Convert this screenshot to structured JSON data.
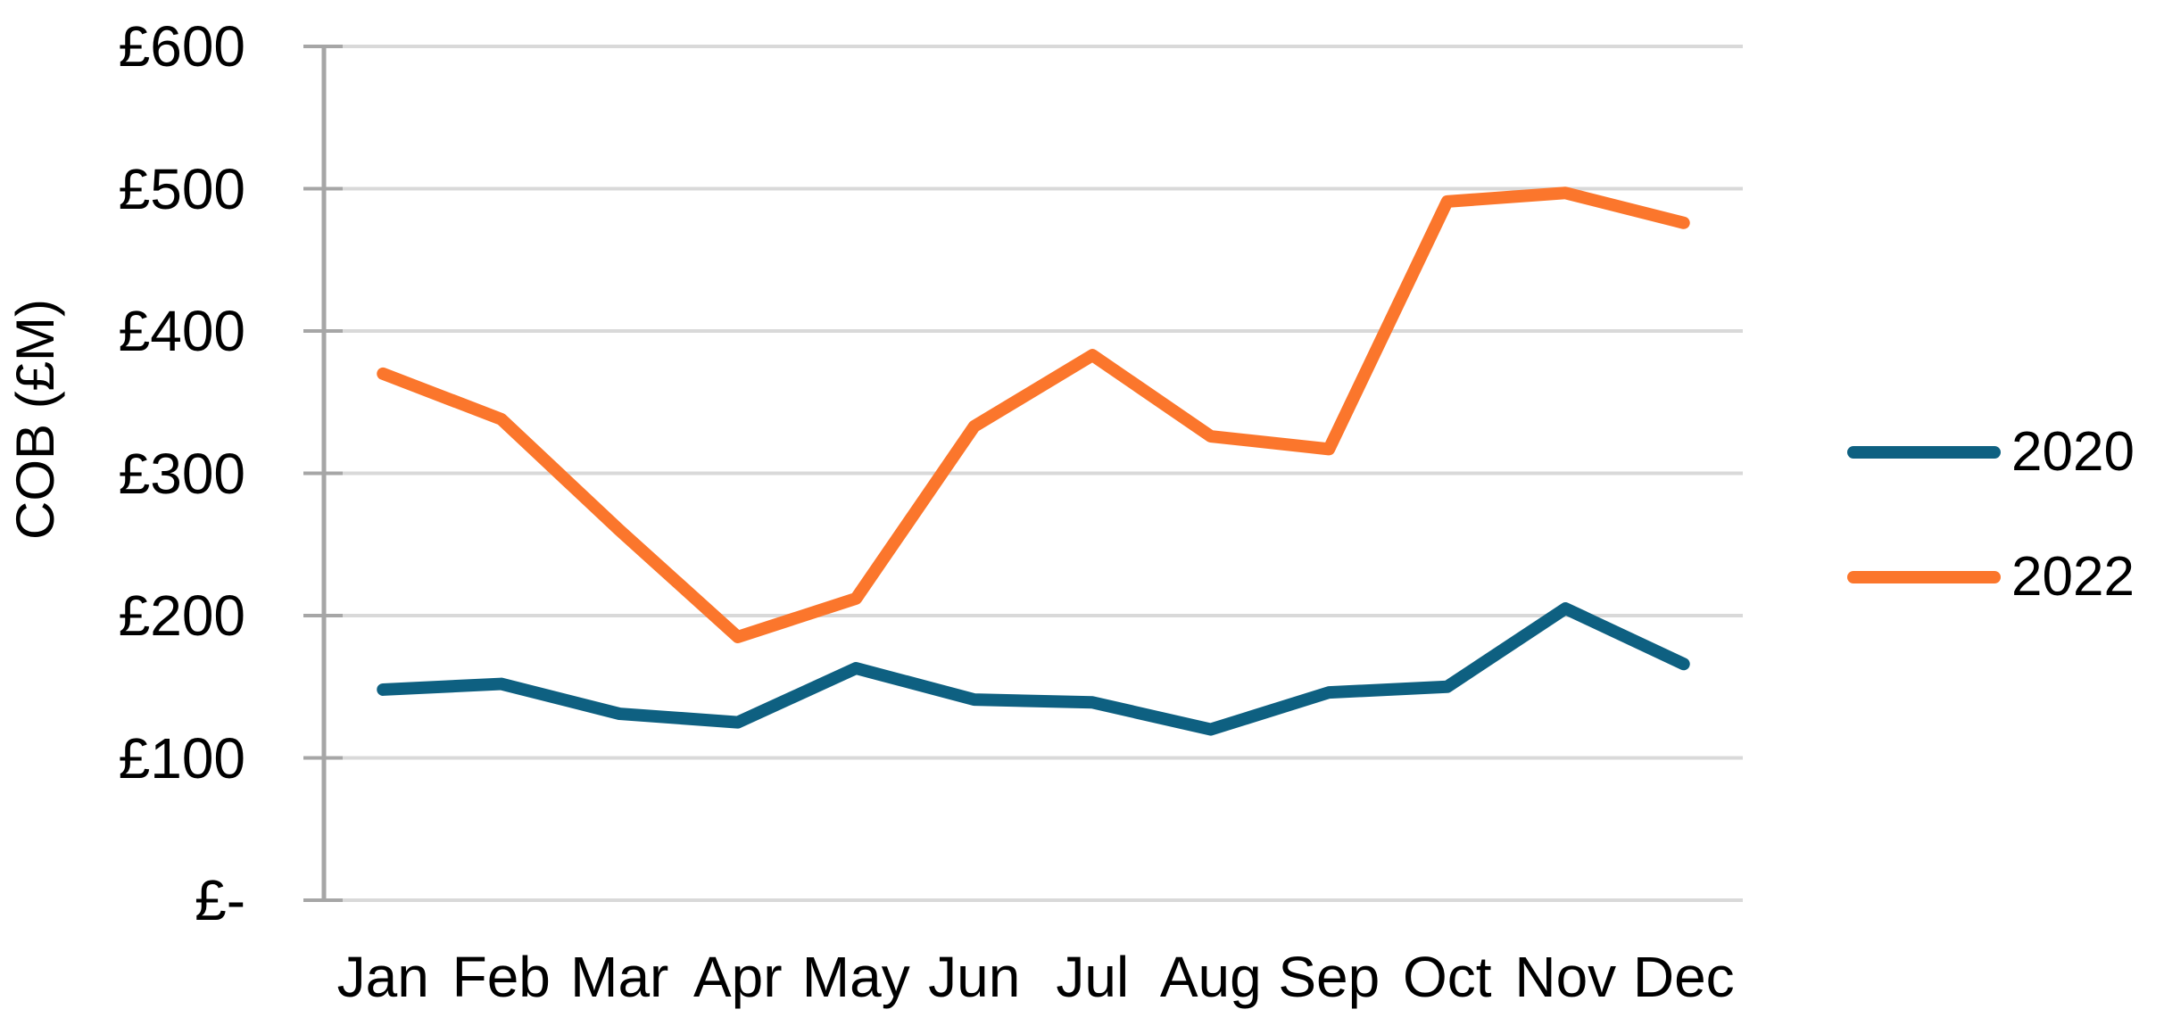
{
  "chart": {
    "y_axis_title": "COB (£M)",
    "y_tick_labels": [
      "£-",
      "£100",
      "£200",
      "£300",
      "£400",
      "£500",
      "£600"
    ],
    "x_labels": [
      "Jan",
      "Feb",
      "Mar",
      "Apr",
      "May",
      "Jun",
      "Jul",
      "Aug",
      "Sep",
      "Oct",
      "Nov",
      "Dec"
    ],
    "legend_items": [
      "2020",
      "2022"
    ],
    "colors": {
      "series_2020": "#0E6081",
      "series_2022": "#FB762C",
      "axis_line": "#A6A6A6",
      "tick_mark": "#A6A6A6",
      "gridline": "#D9D9D9",
      "text": "#000000",
      "background": "#FFFFFF"
    }
  },
  "chart_data": {
    "type": "line",
    "title": "",
    "xlabel": "",
    "ylabel": "COB (£M)",
    "categories": [
      "Jan",
      "Feb",
      "Mar",
      "Apr",
      "May",
      "Jun",
      "Jul",
      "Aug",
      "Sep",
      "Oct",
      "Nov",
      "Dec"
    ],
    "series": [
      {
        "name": "2020",
        "color": "#0E6081",
        "values": [
          148,
          152,
          131,
          125,
          163,
          141,
          139,
          120,
          146,
          150,
          205,
          166
        ]
      },
      {
        "name": "2022",
        "color": "#FB762C",
        "values": [
          370,
          338,
          260,
          185,
          212,
          333,
          383,
          326,
          317,
          491,
          497,
          476
        ]
      }
    ],
    "ylim": [
      0,
      600
    ],
    "y_tick_step": 100,
    "y_tick_format": "£{value}",
    "y_zero_label": "£-",
    "grid": true,
    "gridlines": "horizontal",
    "legend_position": "right"
  }
}
